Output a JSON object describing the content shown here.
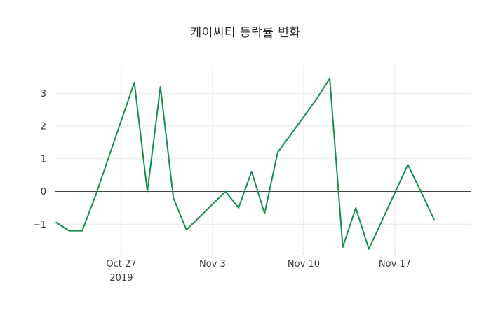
{
  "title": {
    "text": "케이씨티 등락률 변화"
  },
  "style": {
    "line_color": "#168f4f",
    "grid_color": "#e8e8e8",
    "zeroline_color": "#444444",
    "tick_mark_color": "#cccccc",
    "label_color": "#3d3d3d",
    "title_color": "#2b2b2b",
    "background": "#ffffff"
  },
  "chart_data": {
    "type": "line",
    "title": "케이씨티 등락률 변화",
    "xlabel": "",
    "ylabel": "",
    "legend": "none",
    "grid": true,
    "zeroline": true,
    "ylim": [
      -1.85,
      3.82
    ],
    "xlim": [
      "2019-10-22",
      "2019-11-20"
    ],
    "yticks": [
      3,
      2,
      1,
      0,
      -1
    ],
    "xticks": [
      {
        "date": "2019-10-27",
        "label": "Oct 27",
        "sublabel": "2019"
      },
      {
        "date": "2019-11-03",
        "label": "Nov 3",
        "sublabel": ""
      },
      {
        "date": "2019-11-10",
        "label": "Nov 10",
        "sublabel": ""
      },
      {
        "date": "2019-11-17",
        "label": "Nov 17",
        "sublabel": ""
      }
    ],
    "series": [
      {
        "name": "케이씨티 등락률",
        "x": [
          "2019-10-22",
          "2019-10-23",
          "2019-10-24",
          "2019-10-25",
          "2019-10-28",
          "2019-10-29",
          "2019-10-30",
          "2019-10-31",
          "2019-11-01",
          "2019-11-04",
          "2019-11-05",
          "2019-11-06",
          "2019-11-07",
          "2019-11-08",
          "2019-11-11",
          "2019-11-12",
          "2019-11-13",
          "2019-11-14",
          "2019-11-15",
          "2019-11-18",
          "2019-11-19",
          "2019-11-20"
        ],
        "values": [
          -0.95,
          -1.2,
          -1.2,
          -0.15,
          3.33,
          0.0,
          3.2,
          -0.2,
          -1.17,
          0.0,
          -0.5,
          0.61,
          -0.67,
          1.19,
          2.83,
          3.45,
          -1.7,
          -0.5,
          -1.76,
          0.82,
          0.0,
          -0.85
        ]
      }
    ]
  }
}
